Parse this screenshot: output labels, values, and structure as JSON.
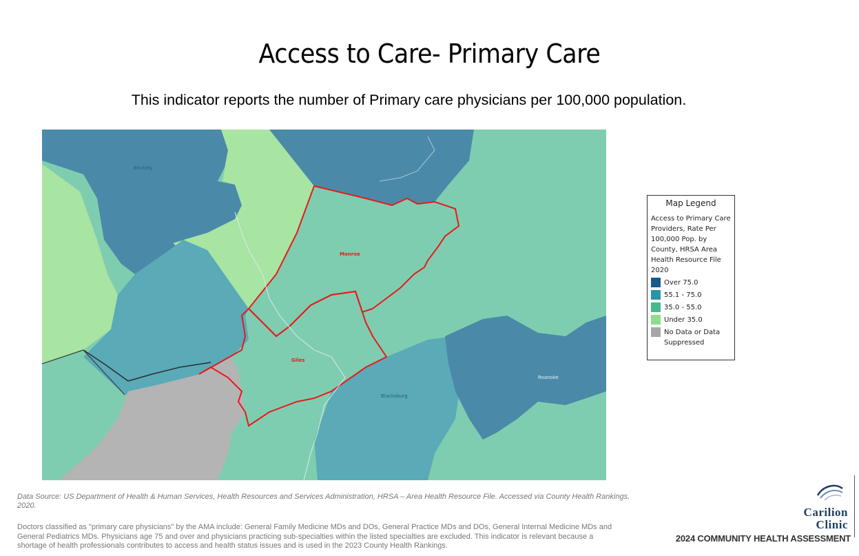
{
  "page": {
    "title": "Access to Care- Primary Care",
    "subtitle": "This indicator reports the number of Primary care physicians per 100,000 population."
  },
  "map": {
    "labels": {
      "beckley": "Beckley",
      "monroe": "Monroe",
      "giles": "Giles",
      "blacksburg": "Blacksburg",
      "roanoke": "Roanoke"
    },
    "highlight_color": "#e8191b"
  },
  "legend": {
    "title": "Map Legend",
    "description": "Access to Primary Care Providers, Rate Per 100,000 Pop. by County, HRSA Area Health Resource File 2020",
    "items": [
      {
        "label": "Over 75.0",
        "color": "#175b8a"
      },
      {
        "label": "55.1 - 75.0",
        "color": "#2a95a6"
      },
      {
        "label": "35.0 - 55.0",
        "color": "#46b98b"
      },
      {
        "label": "Under 35.0",
        "color": "#8fdc8a"
      },
      {
        "label": "No Data or Data Suppressed",
        "color": "#a6a6a6"
      }
    ]
  },
  "footer": {
    "source": "Data Source: US Department of Health & Human Services, Health Resources and Services Administration, HRSA – Area Health Resource File. Accessed via County Health Rankings. 2020.",
    "note": "Doctors classified as \"primary care physicians\" by the AMA include: General Family Medicine MDs and DOs, General Practice MDs and DOs, General Internal Medicine MDs and General Pediatrics MDs. Physicians age 75 and over and physicians practicing sub-specialties within the listed specialties are excluded. This indicator is relevant because a shortage of health professionals contributes to access and health status issues and is used in the 2023 County Health Rankings."
  },
  "brand": {
    "line1": "Carilion",
    "line2": "Clinic",
    "tagline": "2024 COMMUNITY HEALTH ASSESSMENT",
    "logo_icon": "carilion-swoosh-icon",
    "color": "#1d3f63"
  }
}
